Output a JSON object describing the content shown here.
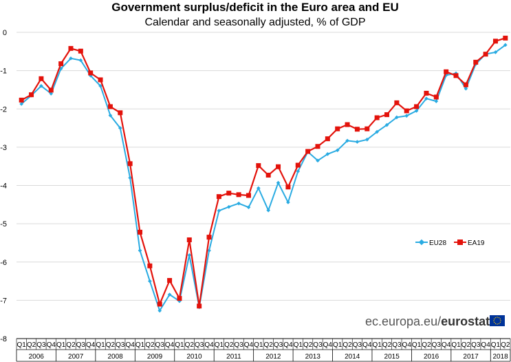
{
  "chart_data": {
    "type": "line",
    "title": "Government surplus/deficit in the Euro area and EU",
    "subtitle": "Calendar and seasonally adjusted, % of GDP",
    "ylim": [
      -8,
      0
    ],
    "yticks": [
      "0",
      "-1",
      "-2",
      "-3",
      "-4",
      "-5",
      "-6",
      "-7",
      "-8"
    ],
    "grid": "horizontal",
    "legend_position": "bottom-right",
    "quarter_labels": [
      "Q1",
      "Q2",
      "Q3",
      "Q4",
      "Q1",
      "Q2",
      "Q3",
      "Q4",
      "Q1",
      "Q2",
      "Q3",
      "Q4",
      "Q1",
      "Q2",
      "Q3",
      "Q4",
      "Q1",
      "Q2",
      "Q3",
      "Q4",
      "Q1",
      "Q2",
      "Q3",
      "Q4",
      "Q1",
      "Q2",
      "Q3",
      "Q4",
      "Q1",
      "Q2",
      "Q3",
      "Q4",
      "Q1",
      "Q2",
      "Q3",
      "Q4",
      "Q1",
      "Q2",
      "Q3",
      "Q4",
      "Q1",
      "Q2",
      "Q3",
      "Q4",
      "Q1",
      "Q2",
      "Q3",
      "Q4",
      "Q1",
      "Q2"
    ],
    "year_labels": [
      "2006",
      "2007",
      "2008",
      "2009",
      "2010",
      "2011",
      "2012",
      "2013",
      "2014",
      "2015",
      "2016",
      "2017",
      "2018"
    ],
    "series": [
      {
        "name": "EU28",
        "color": "#29abe2",
        "marker": "diamond",
        "values": [
          -1.87,
          -1.65,
          -1.4,
          -1.6,
          -0.95,
          -0.68,
          -0.73,
          -1.13,
          -1.4,
          -2.17,
          -2.5,
          -3.8,
          -5.7,
          -6.5,
          -7.27,
          -6.85,
          -7.02,
          -5.82,
          -7.18,
          -5.7,
          -4.66,
          -4.56,
          -4.47,
          -4.57,
          -4.07,
          -4.65,
          -3.93,
          -4.44,
          -3.63,
          -3.12,
          -3.35,
          -3.18,
          -3.08,
          -2.83,
          -2.86,
          -2.8,
          -2.6,
          -2.42,
          -2.22,
          -2.18,
          -2.05,
          -1.73,
          -1.8,
          -1.12,
          -1.07,
          -1.47,
          -0.83,
          -0.57,
          -0.52,
          -0.33
        ]
      },
      {
        "name": "EA19",
        "color": "#e3120b",
        "marker": "square",
        "values": [
          -1.77,
          -1.63,
          -1.21,
          -1.51,
          -0.82,
          -0.42,
          -0.49,
          -1.06,
          -1.24,
          -1.94,
          -2.1,
          -3.43,
          -5.22,
          -6.1,
          -7.1,
          -6.48,
          -6.95,
          -5.42,
          -7.15,
          -5.35,
          -4.29,
          -4.2,
          -4.24,
          -4.26,
          -3.48,
          -3.73,
          -3.51,
          -4.04,
          -3.47,
          -3.11,
          -2.98,
          -2.78,
          -2.52,
          -2.41,
          -2.53,
          -2.52,
          -2.23,
          -2.15,
          -1.84,
          -2.05,
          -1.94,
          -1.59,
          -1.69,
          -1.03,
          -1.13,
          -1.37,
          -0.78,
          -0.57,
          -0.23,
          -0.15
        ]
      }
    ]
  },
  "source": {
    "prefix": "ec.europa.eu/",
    "brand": "eurostat"
  }
}
